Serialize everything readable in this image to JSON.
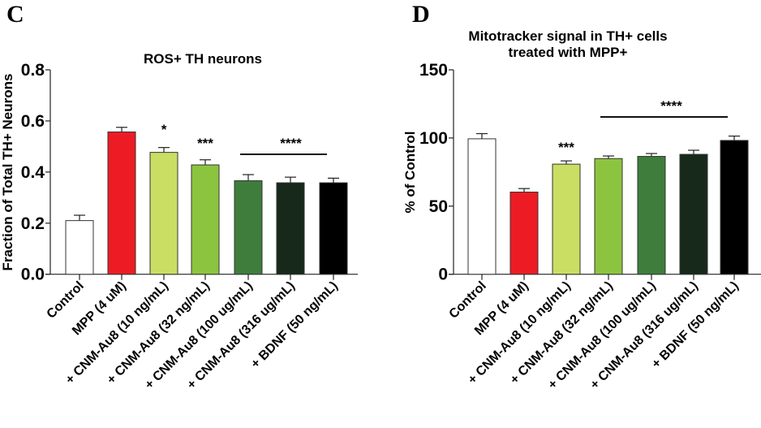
{
  "chart_data": [
    {
      "panel": "C",
      "type": "bar",
      "title": "ROS+ TH neurons",
      "xlabel": "",
      "ylabel": "Fraction of Total TH+ Neurons",
      "ylim": [
        0,
        0.8
      ],
      "yticks": [
        "0.0",
        "0.2",
        "0.4",
        "0.6",
        "0.8"
      ],
      "ytick_values": [
        0,
        0.2,
        0.4,
        0.6,
        0.8
      ],
      "categories": [
        "Control",
        "MPP (4 uM)",
        "+ CNM-Au8 (10 ng/mL)",
        "+ CNM-Au8 (32 ng/mL)",
        "+ CNM-Au8 (100 ug/mL)",
        "+ CNM-Au8 (316 ug/mL)",
        "+ BDNF (50 ng/mL)"
      ],
      "values": [
        0.21,
        0.557,
        0.477,
        0.428,
        0.366,
        0.358,
        0.358
      ],
      "error_upper": [
        0.231,
        0.575,
        0.496,
        0.448,
        0.39,
        0.38,
        0.376
      ],
      "colors": [
        "#ffffff",
        "#ed1c24",
        "#cade63",
        "#8cc43f",
        "#3e7d3b",
        "#16291a",
        "#000000"
      ],
      "significance": [
        {
          "label": "*",
          "from": 2,
          "to": 2,
          "line": false
        },
        {
          "label": "***",
          "from": 3,
          "to": 3,
          "line": false
        },
        {
          "label": "****",
          "from": 4,
          "to": 6,
          "line": true
        }
      ]
    },
    {
      "panel": "D",
      "type": "bar",
      "title": [
        "Mitotracker signal in TH+ cells",
        "treated with MPP+"
      ],
      "xlabel": "",
      "ylabel": "% of Control",
      "ylim": [
        0,
        150
      ],
      "yticks": [
        "0",
        "50",
        "100",
        "150"
      ],
      "ytick_values": [
        0,
        50,
        100,
        150
      ],
      "categories": [
        "Control",
        "MPP (4 uM)",
        "+ CNM-Au8 (10 ng/mL)",
        "+ CNM-Au8 (32 ng/mL)",
        "+ CNM-Au8 (100 ug/mL)",
        "+ CNM-Au8 (316 ug/mL)",
        "+ BDNF (50 ng/mL)"
      ],
      "values": [
        99.4,
        60.3,
        80.8,
        84.9,
        86.5,
        88.0,
        98.2
      ],
      "error_upper": [
        103.2,
        62.9,
        83.2,
        86.8,
        88.6,
        91.0,
        101.4
      ],
      "colors": [
        "#ffffff",
        "#ed1c24",
        "#cade63",
        "#8cc43f",
        "#3e7d3b",
        "#16291a",
        "#000000"
      ],
      "significance": [
        {
          "label": "***",
          "from": 2,
          "to": 2,
          "line": false
        },
        {
          "label": "****",
          "from": 3,
          "to": 6,
          "line": true
        }
      ]
    }
  ]
}
